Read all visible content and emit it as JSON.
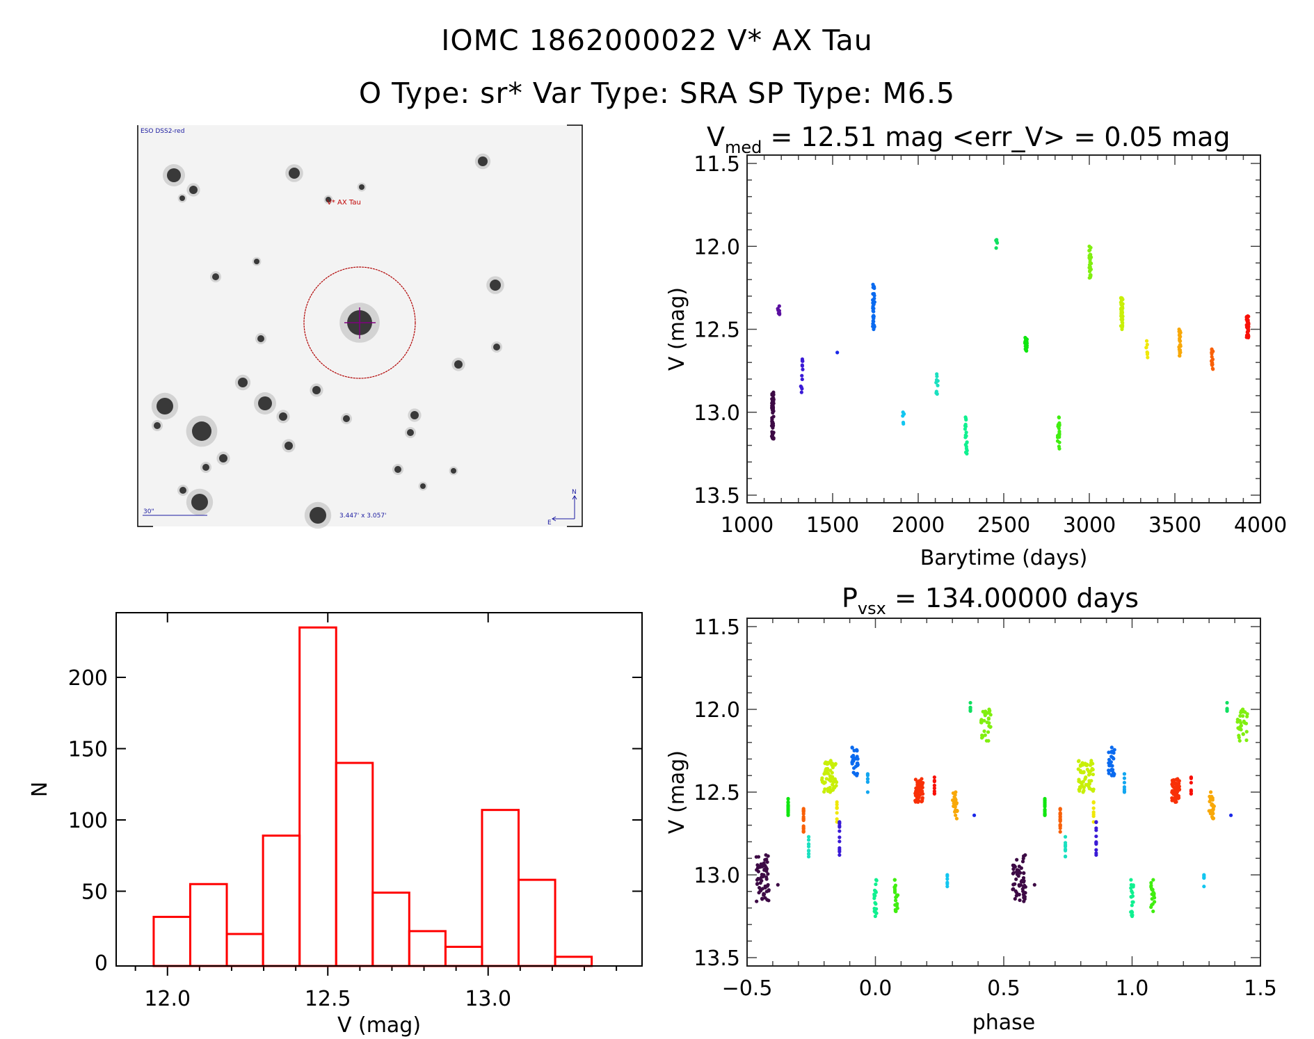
{
  "header": {
    "title": "IOMC 1862000022    V* AX Tau",
    "subtitle": "O Type: sr*   Var Type: SRA   SP Type: M6.5"
  },
  "finder_image": {
    "survey_label": "ESO DSS2-red",
    "target_label": "V* AX Tau",
    "scale_bar_label": "30\"",
    "fov_label": "3.447' x 3.057'",
    "north_label": "N",
    "east_label": "E",
    "circle_color": "#b00000",
    "crosshair_color": "#800080"
  },
  "chart_data": [
    {
      "id": "lightcurve",
      "type": "scatter",
      "title_main": "V",
      "title_sub": "med",
      "title_rest": " = 12.51 mag <err_V> = 0.05 mag",
      "xlabel": "Barytime (days)",
      "ylabel": "V (mag)",
      "xlim": [
        1000,
        4000
      ],
      "ylim": [
        11.5,
        13.5
      ],
      "y_inverted": true,
      "xticks": [
        1000,
        1500,
        2000,
        2500,
        3000,
        3500,
        4000
      ],
      "xtick_labels": [
        "1000",
        "1500",
        "2000",
        "2500",
        "3000",
        "3500",
        "4000"
      ],
      "yticks": [
        11.5,
        12.0,
        12.5,
        13.0,
        13.5
      ],
      "ytick_labels": [
        "11.5",
        "12.0",
        "12.5",
        "13.0",
        "13.5"
      ],
      "grid": false,
      "color_scale": "rainbow by time",
      "groups": [
        {
          "t": 1150,
          "vmin": 12.88,
          "vmax": 13.16,
          "color": "#3d0a45",
          "n": 60
        },
        {
          "t": 1185,
          "vmin": 12.36,
          "vmax": 12.41,
          "color": "#5a0fa0",
          "n": 8
        },
        {
          "t": 1320,
          "vmin": 12.68,
          "vmax": 12.88,
          "color": "#3a1ad6",
          "n": 12
        },
        {
          "t": 1525,
          "vmin": 12.64,
          "vmax": 12.64,
          "color": "#1a28e8",
          "n": 1
        },
        {
          "t": 1740,
          "vmin": 12.23,
          "vmax": 12.5,
          "color": "#0a6aef",
          "n": 35
        },
        {
          "t": 1915,
          "vmin": 13.0,
          "vmax": 13.07,
          "color": "#12c6f0",
          "n": 6
        },
        {
          "t": 2110,
          "vmin": 12.77,
          "vmax": 12.89,
          "color": "#1ae0c0",
          "n": 10
        },
        {
          "t": 2280,
          "vmin": 13.03,
          "vmax": 13.25,
          "color": "#10f090",
          "n": 20
        },
        {
          "t": 2460,
          "vmin": 11.96,
          "vmax": 12.01,
          "color": "#10e060",
          "n": 6
        },
        {
          "t": 2630,
          "vmin": 12.55,
          "vmax": 12.63,
          "color": "#10e610",
          "n": 25
        },
        {
          "t": 2820,
          "vmin": 13.03,
          "vmax": 13.22,
          "color": "#40ee10",
          "n": 20
        },
        {
          "t": 3005,
          "vmin": 12.0,
          "vmax": 12.19,
          "color": "#80ef10",
          "n": 30
        },
        {
          "t": 3190,
          "vmin": 12.31,
          "vmax": 12.5,
          "color": "#c8ef08",
          "n": 40
        },
        {
          "t": 3335,
          "vmin": 12.57,
          "vmax": 12.67,
          "color": "#f0e808",
          "n": 8
        },
        {
          "t": 3530,
          "vmin": 12.5,
          "vmax": 12.66,
          "color": "#f8a808",
          "n": 25
        },
        {
          "t": 3718,
          "vmin": 12.62,
          "vmax": 12.74,
          "color": "#f86008",
          "n": 20
        },
        {
          "t": 3925,
          "vmin": 12.42,
          "vmax": 12.55,
          "color": "#f81008",
          "n": 50
        }
      ]
    },
    {
      "id": "phased",
      "type": "scatter",
      "title_main": "P",
      "title_sub": "vsx",
      "title_rest": " = 134.00000 days",
      "xlabel": "phase",
      "ylabel": "V (mag)",
      "xlim": [
        -0.5,
        1.5
      ],
      "ylim": [
        11.5,
        13.5
      ],
      "y_inverted": true,
      "xticks": [
        -0.5,
        0.0,
        0.5,
        1.0,
        1.5
      ],
      "xtick_labels": [
        "−0.5",
        "0.0",
        "0.5",
        "1.0",
        "1.5"
      ],
      "yticks": [
        11.5,
        12.0,
        12.5,
        13.0,
        13.5
      ],
      "ytick_labels": [
        "11.5",
        "12.0",
        "12.5",
        "13.0",
        "13.5"
      ],
      "grid": false,
      "period_days": 134.0,
      "groups": [
        {
          "phase": 0.56,
          "spread": 0.025,
          "vmin": 12.88,
          "vmax": 13.16,
          "color": "#3d0a45",
          "n": 60
        },
        {
          "phase": 0.62,
          "spread": 0.0,
          "vmin": 13.06,
          "vmax": 13.06,
          "color": "#3d0a45",
          "n": 1
        },
        {
          "phase": 0.66,
          "spread": 0.0,
          "vmin": 12.54,
          "vmax": 12.64,
          "color": "#10e610",
          "n": 20
        },
        {
          "phase": 0.72,
          "spread": 0.0,
          "vmin": 12.6,
          "vmax": 12.74,
          "color": "#f86008",
          "n": 20
        },
        {
          "phase": 0.74,
          "spread": 0.0,
          "vmin": 12.77,
          "vmax": 12.89,
          "color": "#1ae0c0",
          "n": 10
        },
        {
          "phase": 0.82,
          "spread": 0.03,
          "vmin": 12.31,
          "vmax": 12.5,
          "color": "#c8ef08",
          "n": 60
        },
        {
          "phase": 0.85,
          "spread": 0.0,
          "vmin": 12.56,
          "vmax": 12.68,
          "color": "#f0e808",
          "n": 8
        },
        {
          "phase": 0.86,
          "spread": 0.0,
          "vmin": 12.68,
          "vmax": 12.88,
          "color": "#3a1ad6",
          "n": 12
        },
        {
          "phase": 0.92,
          "spread": 0.012,
          "vmin": 12.23,
          "vmax": 12.4,
          "color": "#0a6aef",
          "n": 30
        },
        {
          "phase": 0.97,
          "spread": 0.0,
          "vmin": 12.39,
          "vmax": 12.5,
          "color": "#12a6f0",
          "n": 8
        },
        {
          "phase": 1.0,
          "spread": 0.005,
          "vmin": 13.03,
          "vmax": 13.25,
          "color": "#10f090",
          "n": 20
        },
        {
          "phase": 1.08,
          "spread": 0.008,
          "vmin": 13.03,
          "vmax": 13.22,
          "color": "#40ee10",
          "n": 20
        },
        {
          "phase": 1.17,
          "spread": 0.015,
          "vmin": 12.42,
          "vmax": 12.56,
          "color": "#f83008",
          "n": 60
        },
        {
          "phase": 1.23,
          "spread": 0.0,
          "vmin": 12.41,
          "vmax": 12.51,
          "color": "#f81008",
          "n": 8
        },
        {
          "phase": 1.28,
          "spread": 0.0,
          "vmin": 13.0,
          "vmax": 13.07,
          "color": "#12c6f0",
          "n": 6
        },
        {
          "phase": 1.31,
          "spread": 0.01,
          "vmin": 12.5,
          "vmax": 12.66,
          "color": "#f8a808",
          "n": 25
        },
        {
          "phase": 1.385,
          "spread": 0.0,
          "vmin": 12.64,
          "vmax": 12.64,
          "color": "#1a28e8",
          "n": 1
        },
        {
          "phase": 1.37,
          "spread": 0.0,
          "vmin": 11.96,
          "vmax": 12.01,
          "color": "#10e060",
          "n": 6
        },
        {
          "phase": 1.43,
          "spread": 0.02,
          "vmin": 12.0,
          "vmax": 12.19,
          "color": "#80ef10",
          "n": 30
        }
      ]
    },
    {
      "id": "histogram",
      "type": "bar",
      "title": "",
      "xlabel": "V (mag)",
      "ylabel": "N",
      "xlim": [
        11.84,
        13.48
      ],
      "ylim": [
        0,
        246
      ],
      "xticks": [
        12.0,
        12.5,
        13.0
      ],
      "xtick_labels": [
        "12.0",
        "12.5",
        "13.0"
      ],
      "yticks": [
        0,
        50,
        100,
        150,
        200
      ],
      "ytick_labels": [
        "0",
        "50",
        "100",
        "150",
        "200"
      ],
      "bar_color": "#ff0000",
      "bin_edges": [
        11.957,
        12.071,
        12.185,
        12.298,
        12.412,
        12.526,
        12.64,
        12.754,
        12.867,
        12.981,
        13.095,
        13.209,
        13.323
      ],
      "values": [
        32,
        55,
        20,
        89,
        235,
        140,
        49,
        22,
        11,
        107,
        58,
        4
      ]
    }
  ]
}
